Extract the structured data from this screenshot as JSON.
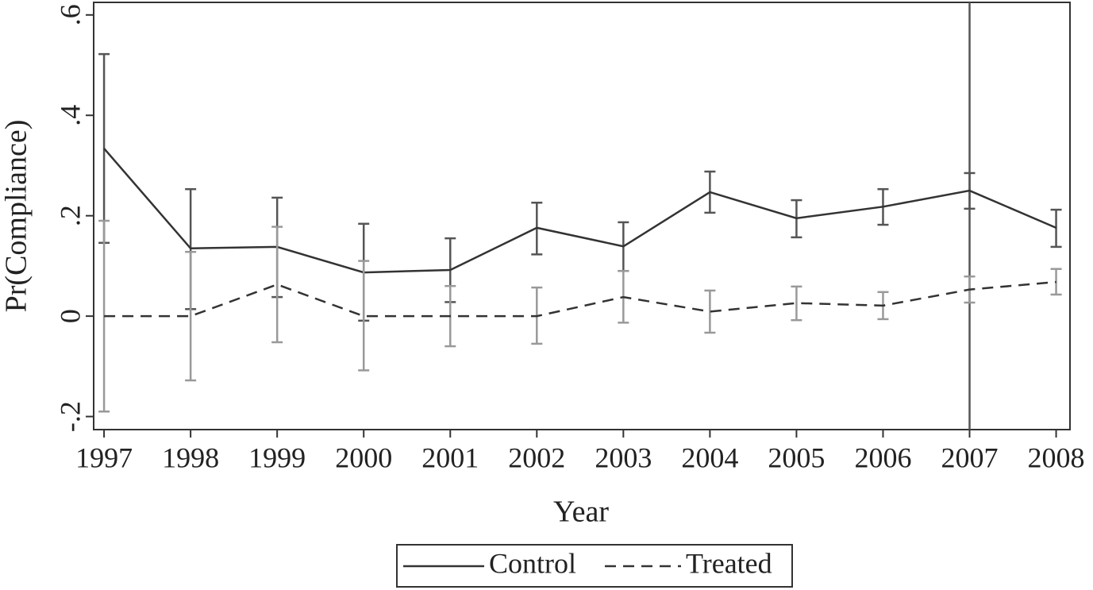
{
  "chart_data": {
    "type": "line",
    "x_label": "Year",
    "y_label": "Pr(Compliance)",
    "x": [
      1997,
      1998,
      1999,
      2000,
      2001,
      2002,
      2003,
      2004,
      2005,
      2006,
      2007,
      2008
    ],
    "xlim": [
      1996.88,
      2008.16
    ],
    "xticks": [
      1997,
      1998,
      1999,
      2000,
      2001,
      2002,
      2003,
      2004,
      2005,
      2006,
      2007,
      2008
    ],
    "ylim": [
      -0.226,
      0.625
    ],
    "yticks": [
      {
        "value": -0.2,
        "label": "-.2"
      },
      0,
      {
        "value": 0.2,
        "label": ".2"
      },
      {
        "value": 0.4,
        "label": ".4"
      },
      {
        "value": 0.6,
        "label": ".6"
      }
    ],
    "vline": 2007,
    "series": [
      {
        "name": "Control",
        "color": "#333333",
        "error_color": "#555555",
        "dash": false,
        "values": [
          0.334,
          0.135,
          0.138,
          0.087,
          0.092,
          0.176,
          0.139,
          0.247,
          0.195,
          0.218,
          0.25,
          0.176
        ],
        "lower": [
          0.146,
          0.014,
          0.038,
          -0.009,
          0.028,
          0.123,
          0.09,
          0.206,
          0.157,
          0.182,
          0.214,
          0.138
        ],
        "upper": [
          0.522,
          0.253,
          0.236,
          0.184,
          0.155,
          0.226,
          0.187,
          0.288,
          0.231,
          0.253,
          0.285,
          0.212
        ]
      },
      {
        "name": "Treated",
        "color": "#333333",
        "error_color": "#999999",
        "dash": true,
        "values": [
          0,
          0,
          0.063,
          0,
          0,
          0,
          0.038,
          0.009,
          0.026,
          0.021,
          0.053,
          0.068
        ],
        "lower": [
          -0.19,
          -0.128,
          -0.052,
          -0.108,
          -0.06,
          -0.055,
          -0.013,
          -0.033,
          -0.008,
          -0.006,
          0.027,
          0.043
        ],
        "upper": [
          0.19,
          0.128,
          0.178,
          0.11,
          0.06,
          0.057,
          0.09,
          0.051,
          0.059,
          0.048,
          0.079,
          0.094
        ]
      }
    ]
  }
}
